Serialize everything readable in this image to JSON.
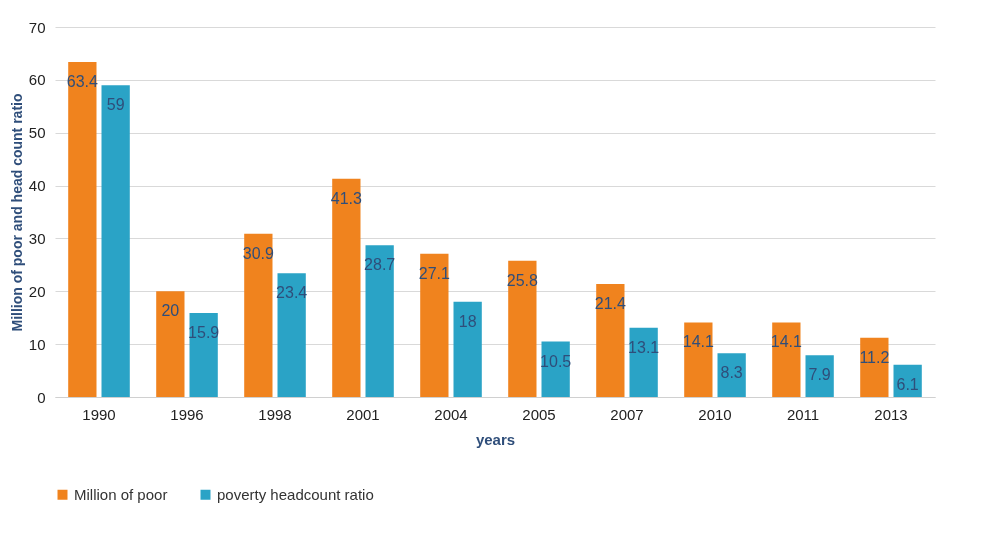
{
  "chart_data": {
    "type": "bar",
    "xlabel": "years",
    "ylabel": "Million of poor and head count ratio",
    "categories": [
      "1990",
      "1996",
      "1998",
      "2001",
      "2004",
      "2005",
      "2007",
      "2010",
      "2011",
      "2013"
    ],
    "series": [
      {
        "name": "Million of poor",
        "color": "#f0831e",
        "values": [
          63.4,
          20,
          30.9,
          41.3,
          27.1,
          25.8,
          21.4,
          14.1,
          14.1,
          11.2
        ]
      },
      {
        "name": "poverty headcount ratio",
        "color": "#2aa3c6",
        "values": [
          59,
          15.9,
          23.4,
          28.7,
          18,
          10.5,
          13.1,
          8.3,
          7.9,
          6.1
        ]
      }
    ],
    "ylim": [
      0,
      70
    ],
    "yticks": [
      0,
      10,
      20,
      30,
      40,
      50,
      60,
      70
    ],
    "grid": "y",
    "legend": "bottom",
    "data_labels": true
  }
}
